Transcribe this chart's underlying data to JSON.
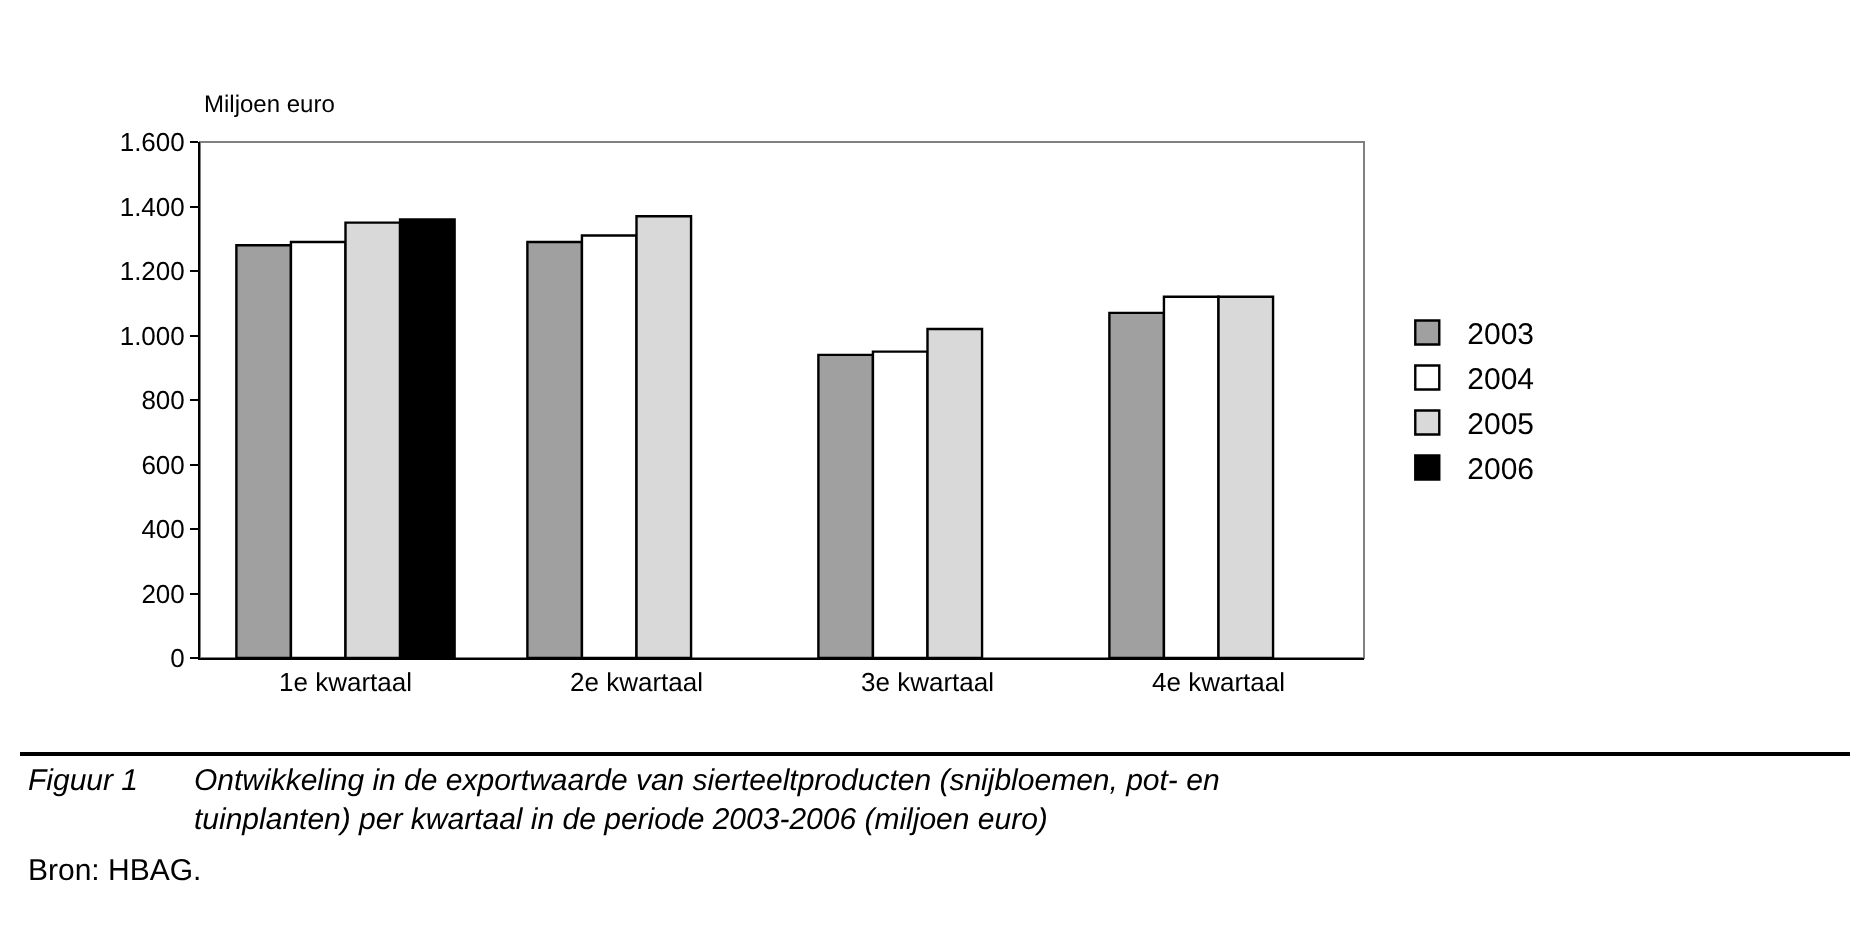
{
  "chart_data": {
    "type": "bar",
    "ylabel": "Miljoen euro",
    "categories": [
      "1e kwartaal",
      "2e kwartaal",
      "3e kwartaal",
      "4e kwartaal"
    ],
    "series": [
      {
        "name": "2003",
        "color": "#a0a0a0",
        "values": [
          1280,
          1290,
          940,
          1070
        ]
      },
      {
        "name": "2004",
        "color": "#ffffff",
        "values": [
          1290,
          1310,
          950,
          1120
        ]
      },
      {
        "name": "2005",
        "color": "#d9d9d9",
        "values": [
          1350,
          1370,
          1020,
          1120
        ]
      },
      {
        "name": "2006",
        "color": "#000000",
        "values": [
          1360,
          null,
          null,
          null
        ]
      }
    ],
    "ylim": [
      0,
      1600
    ],
    "yticks": [
      0,
      200,
      400,
      600,
      800,
      {
        "value": 1000,
        "label": "1.000"
      },
      {
        "value": 1200,
        "label": "1.200"
      },
      {
        "value": 1400,
        "label": "1.400"
      },
      {
        "value": 1600,
        "label": "1.600"
      }
    ],
    "grid": false,
    "legend": "right",
    "annotations": [
      "Figuur 1",
      "Ontwikkeling in de exportwaarde van sierteeltproducten (snijbloemen, pot- en tuinplanten) per kwartaal in de periode 2003-2006 (miljoen euro)",
      "Bron: HBAG."
    ]
  }
}
